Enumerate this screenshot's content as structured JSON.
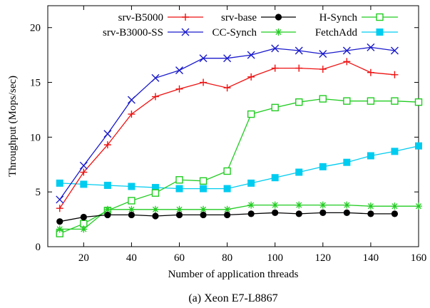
{
  "chart_data": {
    "type": "line",
    "caption": "(a) Xeon E7-L8867",
    "xlabel": "Number of application threads",
    "ylabel": "Throughput (Mops/sec)",
    "xlim": [
      5,
      160
    ],
    "ylim": [
      0,
      22
    ],
    "xticks": [
      20,
      40,
      60,
      80,
      100,
      120,
      140,
      160
    ],
    "yticks": [
      0,
      5,
      10,
      15,
      20
    ],
    "grid": false,
    "legend_position": "top",
    "series": [
      {
        "name": "srv-B5000",
        "color": "#ee1111",
        "marker": "plus",
        "x": [
          10,
          20,
          30,
          40,
          50,
          60,
          70,
          80,
          90,
          100,
          110,
          120,
          130,
          140,
          150
        ],
        "y": [
          3.5,
          6.8,
          9.3,
          12.1,
          13.7,
          14.4,
          15.0,
          14.5,
          15.5,
          16.3,
          16.3,
          16.2,
          16.9,
          15.9,
          15.7
        ]
      },
      {
        "name": "srv-B3000-SS",
        "color": "#1a1acc",
        "marker": "x",
        "x": [
          10,
          20,
          30,
          40,
          50,
          60,
          70,
          80,
          90,
          100,
          110,
          120,
          130,
          140,
          150
        ],
        "y": [
          4.3,
          7.4,
          10.3,
          13.4,
          15.4,
          16.1,
          17.2,
          17.2,
          17.5,
          18.1,
          17.9,
          17.6,
          17.9,
          18.2,
          17.9
        ]
      },
      {
        "name": "srv-base",
        "color": "#000000",
        "marker": "circle",
        "x": [
          10,
          20,
          30,
          40,
          50,
          60,
          70,
          80,
          90,
          100,
          110,
          120,
          130,
          140,
          150
        ],
        "y": [
          2.3,
          2.7,
          2.9,
          2.9,
          2.8,
          2.9,
          2.9,
          2.9,
          3.0,
          3.1,
          3.0,
          3.1,
          3.1,
          3.0,
          3.0
        ]
      },
      {
        "name": "CC-Synch",
        "color": "#22cc22",
        "marker": "asterisk",
        "x": [
          10,
          20,
          30,
          40,
          50,
          60,
          70,
          80,
          90,
          100,
          110,
          120,
          130,
          140,
          150,
          160
        ],
        "y": [
          1.6,
          1.6,
          3.4,
          3.4,
          3.4,
          3.4,
          3.4,
          3.4,
          3.8,
          3.8,
          3.8,
          3.8,
          3.8,
          3.7,
          3.7,
          3.7
        ]
      },
      {
        "name": "H-Synch",
        "color": "#22cc22",
        "marker": "square-open",
        "x": [
          10,
          20,
          30,
          40,
          50,
          60,
          70,
          80,
          90,
          100,
          110,
          120,
          130,
          140,
          150,
          160
        ],
        "y": [
          1.2,
          2.1,
          3.3,
          4.2,
          4.9,
          6.1,
          6.0,
          6.9,
          12.1,
          12.7,
          13.2,
          13.5,
          13.3,
          13.3,
          13.3,
          13.2
        ]
      },
      {
        "name": "FetchAdd",
        "color": "#00ccf0",
        "marker": "square-filled",
        "x": [
          10,
          20,
          30,
          40,
          50,
          60,
          70,
          80,
          90,
          100,
          110,
          120,
          130,
          140,
          150,
          160
        ],
        "y": [
          5.8,
          5.7,
          5.6,
          5.5,
          5.4,
          5.3,
          5.3,
          5.3,
          5.8,
          6.3,
          6.8,
          7.3,
          7.7,
          8.3,
          8.7,
          9.2
        ]
      }
    ]
  }
}
